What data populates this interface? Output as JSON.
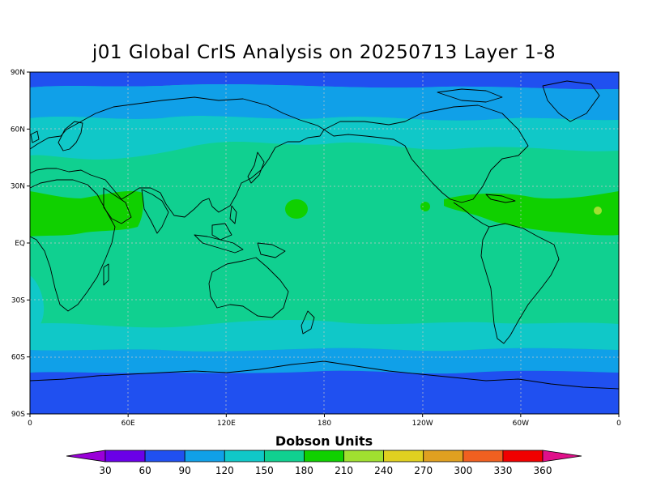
{
  "title": "j01 Global CrIS Analysis on 20250713 Layer 1-8",
  "colorbar": {
    "label": "Dobson Units",
    "ticks": [
      "30",
      "60",
      "90",
      "120",
      "150",
      "180",
      "210",
      "240",
      "270",
      "300",
      "330",
      "360"
    ],
    "colors": [
      "#9a00d8",
      "#6a00e8",
      "#2050f0",
      "#10a0e8",
      "#10c8c8",
      "#10d090",
      "#10d000",
      "#a0e030",
      "#e0d020",
      "#e0a020",
      "#f06020",
      "#f00000",
      "#e0108a"
    ],
    "extend": "both"
  },
  "axes": {
    "lat_labels": [
      "90N",
      "60N",
      "30N",
      "EQ",
      "30S",
      "60S",
      "90S"
    ],
    "lon_labels": [
      "0",
      "60E",
      "120E",
      "180",
      "120W",
      "60W",
      "0"
    ],
    "lat_values": [
      90,
      60,
      30,
      0,
      -30,
      -60,
      -90
    ],
    "lon_values": [
      0,
      60,
      120,
      180,
      240,
      300,
      360
    ],
    "grid": true
  },
  "chart_data": {
    "type": "heatmap",
    "title": "j01 Global CrIS Analysis on 20250713 Layer 1-8",
    "colorbar_label": "Dobson Units",
    "levels": [
      30,
      60,
      90,
      120,
      150,
      180,
      210,
      240,
      270,
      300,
      330,
      360
    ],
    "zones": [
      {
        "lat_range": [
          80,
          90
        ],
        "value_class": "60-90"
      },
      {
        "lat_range": [
          65,
          80
        ],
        "value_class": "90-120"
      },
      {
        "lat_range": [
          50,
          65
        ],
        "value_class": "120-150"
      },
      {
        "lat_range": [
          -30,
          50
        ],
        "value_class": "150-180"
      },
      {
        "lat_range": [
          5,
          25
        ],
        "value_class": "180-210",
        "note": "Africa/Arabia and Atlantic-Caribbean bands"
      },
      {
        "lat_range": [
          -45,
          -30
        ],
        "value_class": "150-180"
      },
      {
        "lat_range": [
          -55,
          -45
        ],
        "value_class": "120-150"
      },
      {
        "lat_range": [
          -65,
          -55
        ],
        "value_class": "90-120"
      },
      {
        "lat_range": [
          -90,
          -65
        ],
        "value_class": "60-90"
      }
    ]
  },
  "icons": {
    "map": "world-map-coastlines"
  }
}
